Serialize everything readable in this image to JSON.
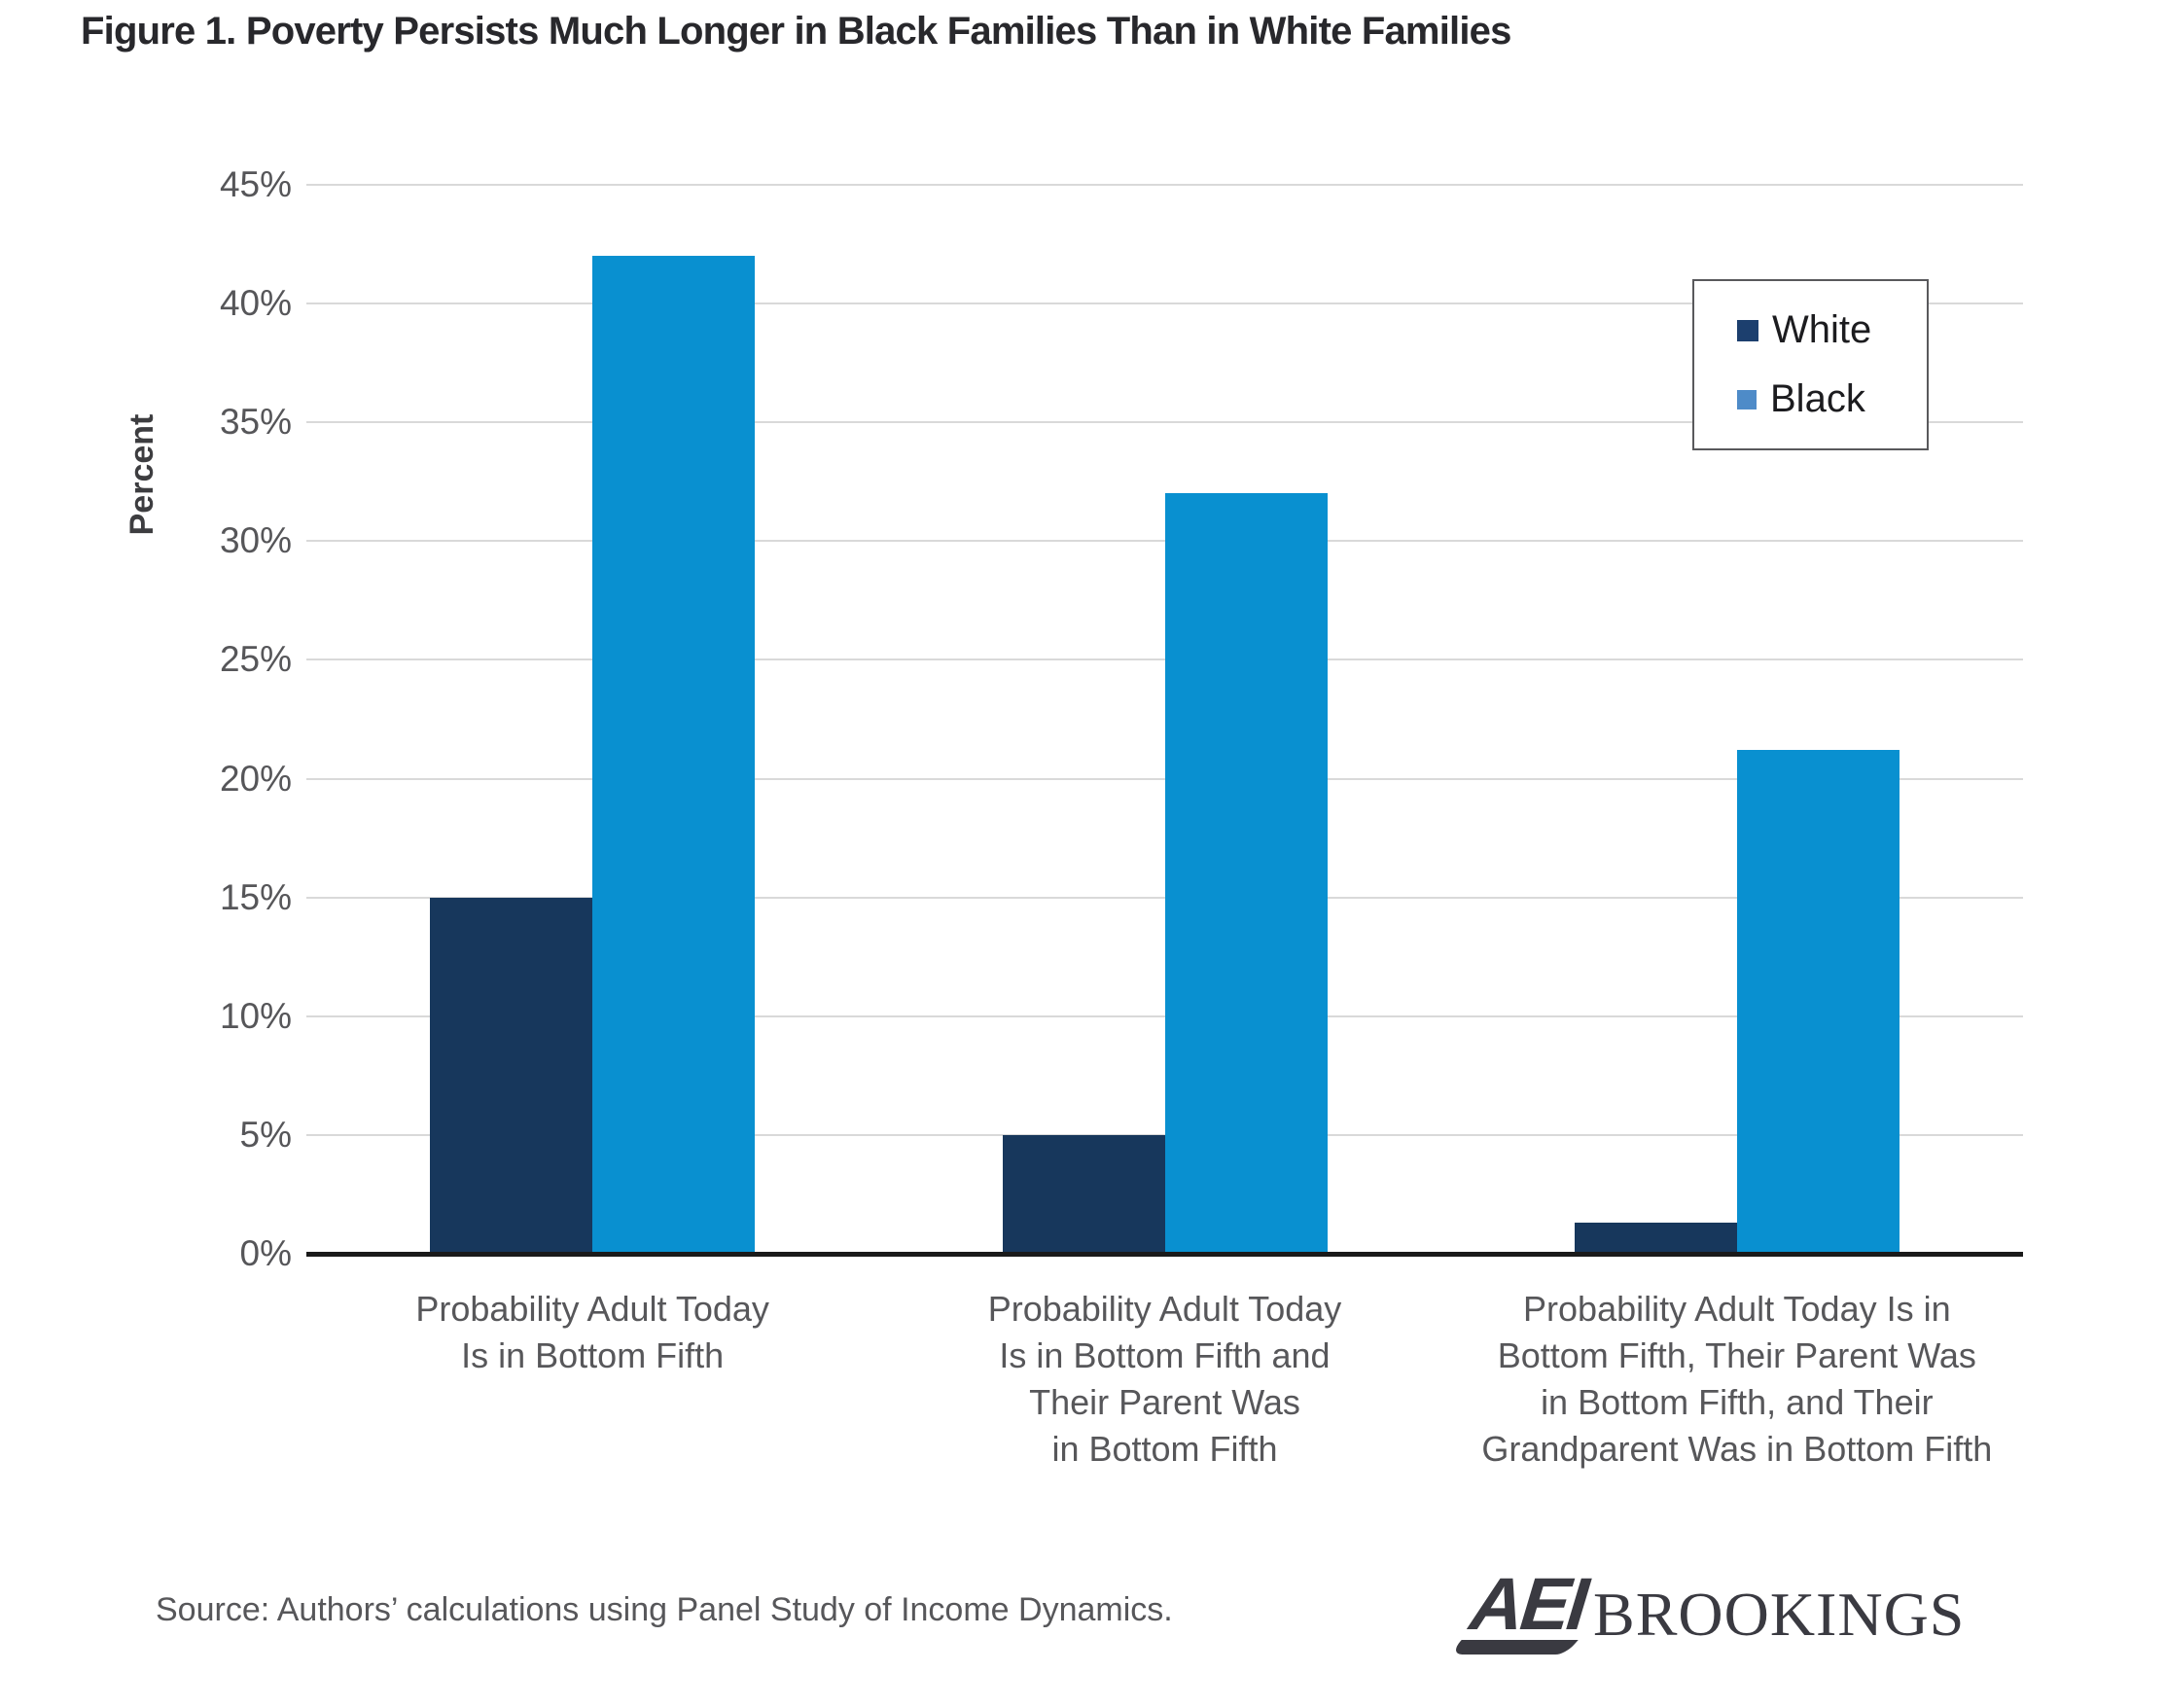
{
  "title": "Figure 1. Poverty Persists Much Longer in Black Families Than in White Families",
  "chart_data": {
    "type": "bar",
    "title": "Figure 1. Poverty Persists Much Longer in Black Families Than in White Families",
    "categories": [
      "Probability Adult Today\nIs in Bottom Fifth",
      "Probability Adult Today\nIs in Bottom Fifth and\nTheir Parent  Was\nin Bottom Fifth",
      "Probability Adult Today Is in\nBottom Fifth, Their Parent Was\nin Bottom Fifth, and Their\nGrandparent Was in Bottom Fifth"
    ],
    "series": [
      {
        "name": "White",
        "color": "#17375C",
        "values": [
          15,
          5,
          1.3
        ]
      },
      {
        "name": "Black",
        "color": "#0990D0",
        "values": [
          42,
          32,
          21.2
        ]
      }
    ],
    "xlabel": "",
    "ylabel": "Percent",
    "ylim": [
      0,
      45
    ],
    "ytick_step": 5,
    "ytick_suffix": "%",
    "grid": true,
    "legend_position": "top-right"
  },
  "legend": {
    "items": [
      {
        "label": "White",
        "color": "#1C3F6E"
      },
      {
        "label": "Black",
        "color": "#4E8BC8"
      }
    ]
  },
  "source": "Source: Authors’ calculations using Panel Study of Income Dynamics.",
  "logo": {
    "aei": "AEI",
    "brookings": "BROOKINGS"
  },
  "colors": {
    "bar_white": "#17375C",
    "bar_black": "#0990D0",
    "gridline": "#d9d9d9",
    "axis": "#1a1a1a",
    "text_muted": "#57575a"
  }
}
